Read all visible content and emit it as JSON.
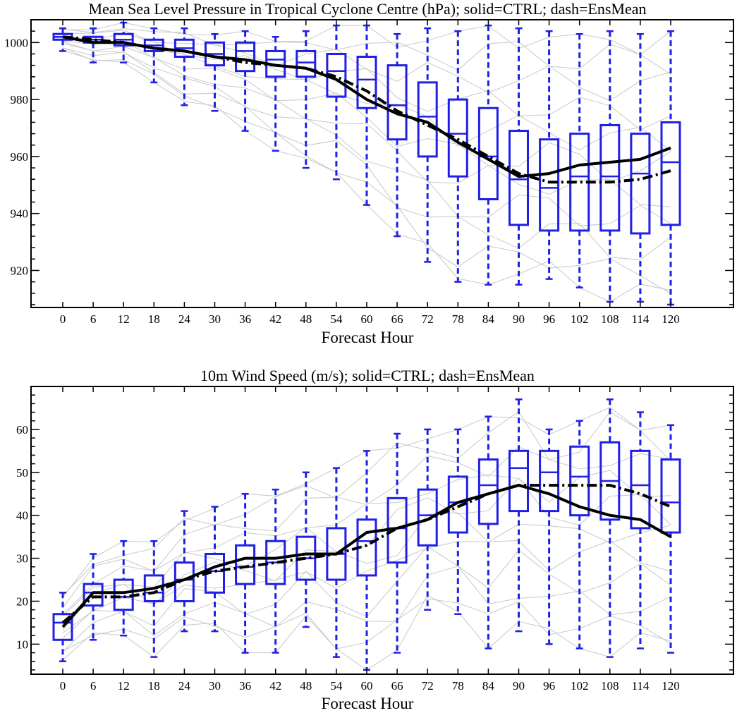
{
  "chart_data": [
    {
      "type": "box",
      "title": "Mean Sea Level Pressure in Tropical Cyclone Centre (hPa); solid=CTRL; dash=EnsMean",
      "xlabel": "Forecast Hour",
      "ylabel": "",
      "categories": [
        "0",
        "6",
        "12",
        "18",
        "24",
        "30",
        "36",
        "42",
        "48",
        "54",
        "60",
        "66",
        "72",
        "78",
        "84",
        "90",
        "96",
        "102",
        "108",
        "114",
        "120"
      ],
      "ylim": [
        907,
        1008
      ],
      "yticks": [
        920,
        940,
        960,
        980,
        1000
      ],
      "yticks_minor_step": 4,
      "grid": false,
      "colors": {
        "box": "#1f1fe6",
        "ctrl": "#000000",
        "ensmean": "#000000",
        "members": "#c8c8c8"
      },
      "boxes": [
        {
          "min": 997,
          "q1": 1001,
          "median": 1002,
          "q3": 1003,
          "max": 1005
        },
        {
          "min": 993,
          "q1": 1000,
          "median": 1001,
          "q3": 1002,
          "max": 1005
        },
        {
          "min": 993,
          "q1": 999,
          "median": 1001,
          "q3": 1003,
          "max": 1007
        },
        {
          "min": 986,
          "q1": 997,
          "median": 999,
          "q3": 1001,
          "max": 1005
        },
        {
          "min": 978,
          "q1": 995,
          "median": 998,
          "q3": 1001,
          "max": 1005
        },
        {
          "min": 976,
          "q1": 992,
          "median": 996,
          "q3": 1000,
          "max": 1003
        },
        {
          "min": 969,
          "q1": 990,
          "median": 997,
          "q3": 1000,
          "max": 1004
        },
        {
          "min": 962,
          "q1": 988,
          "median": 994,
          "q3": 997,
          "max": 1002
        },
        {
          "min": 956,
          "q1": 988,
          "median": 993,
          "q3": 997,
          "max": 1004
        },
        {
          "min": 952,
          "q1": 981,
          "median": 990,
          "q3": 996,
          "max": 1006
        },
        {
          "min": 943,
          "q1": 977,
          "median": 987,
          "q3": 995,
          "max": 1006
        },
        {
          "min": 932,
          "q1": 966,
          "median": 978,
          "q3": 992,
          "max": 1003
        },
        {
          "min": 923,
          "q1": 960,
          "median": 974,
          "q3": 986,
          "max": 1005
        },
        {
          "min": 916,
          "q1": 953,
          "median": 968,
          "q3": 980,
          "max": 1004
        },
        {
          "min": 915,
          "q1": 945,
          "median": 960,
          "q3": 977,
          "max": 1006
        },
        {
          "min": 915,
          "q1": 936,
          "median": 952,
          "q3": 969,
          "max": 1005
        },
        {
          "min": 917,
          "q1": 934,
          "median": 949,
          "q3": 966,
          "max": 1004
        },
        {
          "min": 914,
          "q1": 934,
          "median": 953,
          "q3": 968,
          "max": 1003
        },
        {
          "min": 909,
          "q1": 934,
          "median": 953,
          "q3": 971,
          "max": 1004
        },
        {
          "min": 909,
          "q1": 933,
          "median": 954,
          "q3": 968,
          "max": 1003
        },
        {
          "min": 908,
          "q1": 936,
          "median": 958,
          "q3": 972,
          "max": 1004
        }
      ],
      "ctrl": [
        1002,
        1000,
        1000,
        998,
        997,
        995,
        994,
        992,
        991,
        987,
        980,
        975,
        972,
        965,
        959,
        953,
        954,
        957,
        958,
        959,
        963
      ],
      "ensmean": [
        1002,
        1001,
        1000,
        998,
        997,
        995,
        993,
        992,
        991,
        988,
        983,
        976,
        971,
        966,
        960,
        954,
        951,
        951,
        951,
        952,
        955
      ]
    },
    {
      "type": "box",
      "title": "10m Wind Speed (m/s); solid=CTRL; dash=EnsMean",
      "xlabel": "Forecast Hour",
      "ylabel": "",
      "categories": [
        "0",
        "6",
        "12",
        "18",
        "24",
        "30",
        "36",
        "42",
        "48",
        "54",
        "60",
        "66",
        "72",
        "78",
        "84",
        "90",
        "96",
        "102",
        "108",
        "114",
        "120"
      ],
      "ylim": [
        3,
        70
      ],
      "yticks": [
        10,
        20,
        30,
        40,
        50,
        60
      ],
      "yticks_minor_step": 2,
      "grid": false,
      "colors": {
        "box": "#1f1fe6",
        "ctrl": "#000000",
        "ensmean": "#000000",
        "members": "#c8c8c8"
      },
      "boxes": [
        {
          "min": 6,
          "q1": 11,
          "median": 15,
          "q3": 17,
          "max": 22
        },
        {
          "min": 11,
          "q1": 19,
          "median": 22,
          "q3": 24,
          "max": 31
        },
        {
          "min": 12,
          "q1": 18,
          "median": 21,
          "q3": 25,
          "max": 34
        },
        {
          "min": 7,
          "q1": 20,
          "median": 22,
          "q3": 26,
          "max": 34
        },
        {
          "min": 13,
          "q1": 20,
          "median": 25,
          "q3": 29,
          "max": 41
        },
        {
          "min": 13,
          "q1": 22,
          "median": 27,
          "q3": 31,
          "max": 42
        },
        {
          "min": 8,
          "q1": 24,
          "median": 28,
          "q3": 33,
          "max": 45
        },
        {
          "min": 8,
          "q1": 24,
          "median": 29,
          "q3": 34,
          "max": 46
        },
        {
          "min": 14,
          "q1": 25,
          "median": 30,
          "q3": 35,
          "max": 50
        },
        {
          "min": 7,
          "q1": 25,
          "median": 31,
          "q3": 37,
          "max": 51
        },
        {
          "min": 4,
          "q1": 26,
          "median": 34,
          "q3": 39,
          "max": 55
        },
        {
          "min": 8,
          "q1": 29,
          "median": 37,
          "q3": 44,
          "max": 59
        },
        {
          "min": 18,
          "q1": 33,
          "median": 40,
          "q3": 46,
          "max": 60
        },
        {
          "min": 17,
          "q1": 36,
          "median": 43,
          "q3": 49,
          "max": 60
        },
        {
          "min": 9,
          "q1": 38,
          "median": 47,
          "q3": 53,
          "max": 63
        },
        {
          "min": 13,
          "q1": 41,
          "median": 51,
          "q3": 55,
          "max": 67
        },
        {
          "min": 10,
          "q1": 41,
          "median": 50,
          "q3": 55,
          "max": 60
        },
        {
          "min": 9,
          "q1": 40,
          "median": 49,
          "q3": 56,
          "max": 62
        },
        {
          "min": 7,
          "q1": 39,
          "median": 48,
          "q3": 57,
          "max": 67
        },
        {
          "min": 9,
          "q1": 37,
          "median": 47,
          "q3": 55,
          "max": 64
        },
        {
          "min": 8,
          "q1": 36,
          "median": 43,
          "q3": 53,
          "max": 61
        }
      ],
      "ctrl": [
        14,
        22,
        22,
        23,
        25,
        28,
        30,
        30,
        31,
        31,
        36,
        37,
        39,
        43,
        45,
        47,
        45,
        42,
        40,
        39,
        35
      ],
      "ensmean": [
        15,
        21,
        21,
        22,
        25,
        27,
        28,
        29,
        30,
        31,
        33,
        37,
        39,
        42,
        45,
        47,
        47,
        47,
        47,
        45,
        42
      ]
    }
  ]
}
